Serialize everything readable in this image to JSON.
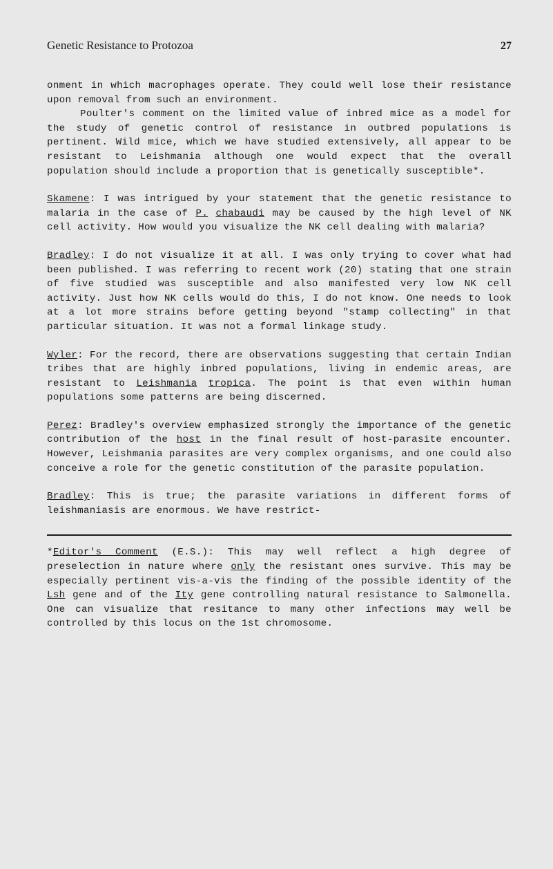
{
  "header": {
    "title": "Genetic Resistance to Protozoa",
    "pageNumber": "27"
  },
  "paragraphs": {
    "p1a": "onment in which macrophages operate. They could well lose their resistance upon removal from such an environment.",
    "p1b": "Poulter's comment on the limited value of inbred mice as a model for the study of genetic control of resistance in outbred populations is pertinent. Wild mice, which we have studied extensively, all appear to be resistant to Leish­mania although one would expect that the overall population should include a proportion that is genetically suscept­ible*.",
    "p2_speaker": "Skamene",
    "p2_t1": ": I was intrigued by your statement that the genetic resistance to malaria in the case of ",
    "p2_u1": "P.",
    "p2_t2": " ",
    "p2_u2": "chabaudi",
    "p2_t3": " may be caused by the high level of NK cell activity. How would you visualize the NK cell dealing with malaria?",
    "p3_speaker": "Bradley",
    "p3_text": ": I do not visualize it at all. I was only trying to cover what had been published. I was referring to recent work (20) stating that one strain of five studied was sus­ceptible and also manifested very low NK cell activity. Just how NK cells would do this, I do not know. One needs to look at a lot more strains before getting beyond \"stamp collecting\" in that particular situation. It was not a formal linkage study.",
    "p4_speaker": "Wyler",
    "p4_t1": ": For the record, there are observations suggesting that certain Indian tribes that are highly inbred populat­ions, living in endemic areas, are resistant to ",
    "p4_u1": "Leishmania",
    "p4_t2": " ",
    "p4_u2": "tropica",
    "p4_t3": ". The point is that even within human populations some patterns are being discerned.",
    "p5_speaker": "Perez",
    "p5_t1": ": Bradley's overview emphasized strongly the import­ance of the genetic contribution of the ",
    "p5_u1": "host",
    "p5_t2": " in the final result of host-parasite encounter. However, Leishmania parasites are very complex organisms, and one could also conceive a role for the genetic constitution of the parasite population.",
    "p6_speaker": "Bradley",
    "p6_text": ": This is true; the parasite variations in differ­ent forms of leishmaniasis are enormous. We have restrict-"
  },
  "footnote": {
    "star": "*",
    "label": "Editor's Comment",
    "t1": " (E.S.): This may well reflect a high degree of preselection in nature where ",
    "u1": "only",
    "t2": " the resistant ones survive. This may be especially pertinent vis-a-vis the finding of the possible identity of the ",
    "u2": "Lsh",
    "t3": " gene and of the ",
    "u3": "Ity",
    "t4": " gene controlling natural resistance to Salmonella. One can visualize that resitance to many other infections may well be controlled by this locus on the 1st chromosome."
  }
}
